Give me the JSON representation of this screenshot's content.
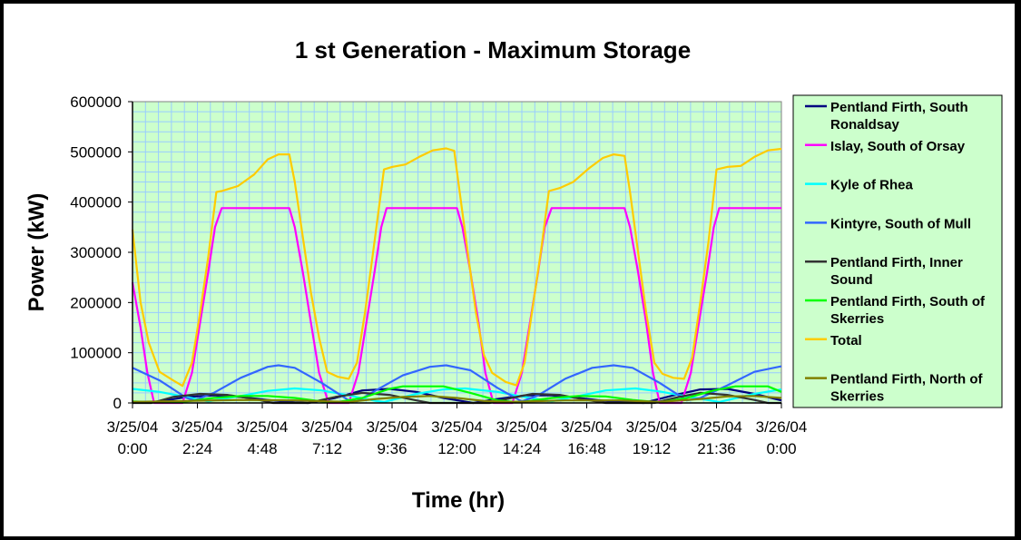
{
  "chart_data": {
    "type": "line",
    "title": "1 st Generation - Maximum Storage",
    "xlabel": "Time (hr)",
    "ylabel": "Power (kW)",
    "xlim_hours": [
      0,
      24
    ],
    "ylim": [
      0,
      600000
    ],
    "y_ticks": [
      "0",
      "100000",
      "200000",
      "300000",
      "400000",
      "500000",
      "600000"
    ],
    "y_tick_values": [
      0,
      100000,
      200000,
      300000,
      400000,
      500000,
      600000
    ],
    "x_ticks": [
      {
        "date": "3/25/04",
        "time": "0:00",
        "hours": 0
      },
      {
        "date": "3/25/04",
        "time": "2:24",
        "hours": 2.4
      },
      {
        "date": "3/25/04",
        "time": "4:48",
        "hours": 4.8
      },
      {
        "date": "3/25/04",
        "time": "7:12",
        "hours": 7.2
      },
      {
        "date": "3/25/04",
        "time": "9:36",
        "hours": 9.6
      },
      {
        "date": "3/25/04",
        "time": "12:00",
        "hours": 12
      },
      {
        "date": "3/25/04",
        "time": "14:24",
        "hours": 14.4
      },
      {
        "date": "3/25/04",
        "time": "16:48",
        "hours": 16.8
      },
      {
        "date": "3/25/04",
        "time": "19:12",
        "hours": 19.2
      },
      {
        "date": "3/25/04",
        "time": "21:36",
        "hours": 21.6
      },
      {
        "date": "3/26/04",
        "time": "0:00",
        "hours": 24
      }
    ],
    "grid": true,
    "legend_position": "right",
    "series": [
      {
        "name": "Pentland Firth, South Ronaldsay",
        "legend_lines": [
          "Pentland Firth, South",
          "Ronaldsay"
        ],
        "color": "#000080",
        "points": [
          [
            0,
            0
          ],
          [
            1,
            3000
          ],
          [
            2,
            12000
          ],
          [
            3,
            15000
          ],
          [
            4,
            12000
          ],
          [
            5,
            6000
          ],
          [
            6,
            1000
          ],
          [
            6.5,
            0
          ],
          [
            7.5,
            10000
          ],
          [
            8.5,
            25000
          ],
          [
            9.5,
            28000
          ],
          [
            10.5,
            22000
          ],
          [
            11.5,
            10000
          ],
          [
            12.6,
            0
          ],
          [
            13.5,
            8000
          ],
          [
            14.5,
            15000
          ],
          [
            15.5,
            15000
          ],
          [
            16.5,
            10000
          ],
          [
            17.5,
            4000
          ],
          [
            18.9,
            0
          ],
          [
            20,
            15000
          ],
          [
            21,
            27000
          ],
          [
            22,
            28000
          ],
          [
            23,
            18000
          ],
          [
            24,
            5000
          ]
        ]
      },
      {
        "name": "Islay, South of Orsay",
        "legend_lines": [
          "Islay, South of Orsay"
        ],
        "color": "#FF00FF",
        "points": [
          [
            0,
            240000
          ],
          [
            0.3,
            150000
          ],
          [
            0.55,
            60000
          ],
          [
            0.8,
            0
          ],
          [
            1.85,
            0
          ],
          [
            2.2,
            60000
          ],
          [
            2.5,
            160000
          ],
          [
            2.8,
            260000
          ],
          [
            3.05,
            350000
          ],
          [
            3.3,
            388000
          ],
          [
            5.8,
            388000
          ],
          [
            6.0,
            350000
          ],
          [
            6.3,
            260000
          ],
          [
            6.6,
            160000
          ],
          [
            6.9,
            60000
          ],
          [
            7.25,
            0
          ],
          [
            8.0,
            0
          ],
          [
            8.35,
            60000
          ],
          [
            8.65,
            160000
          ],
          [
            8.95,
            260000
          ],
          [
            9.2,
            350000
          ],
          [
            9.4,
            388000
          ],
          [
            12.0,
            388000
          ],
          [
            12.2,
            350000
          ],
          [
            12.5,
            260000
          ],
          [
            12.8,
            160000
          ],
          [
            13.05,
            60000
          ],
          [
            13.35,
            0
          ],
          [
            14.05,
            0
          ],
          [
            14.4,
            60000
          ],
          [
            14.7,
            160000
          ],
          [
            15.0,
            260000
          ],
          [
            15.25,
            350000
          ],
          [
            15.5,
            388000
          ],
          [
            18.2,
            388000
          ],
          [
            18.4,
            350000
          ],
          [
            18.7,
            260000
          ],
          [
            19.0,
            160000
          ],
          [
            19.25,
            60000
          ],
          [
            19.5,
            0
          ],
          [
            20.3,
            0
          ],
          [
            20.65,
            60000
          ],
          [
            20.95,
            160000
          ],
          [
            21.25,
            260000
          ],
          [
            21.5,
            350000
          ],
          [
            21.7,
            388000
          ],
          [
            24,
            388000
          ]
        ]
      },
      {
        "name": "Kyle of Rhea",
        "legend_lines": [
          "Kyle of Rhea"
        ],
        "color": "#00FFFF",
        "points": [
          [
            0,
            28000
          ],
          [
            1,
            22000
          ],
          [
            2,
            12000
          ],
          [
            2.8,
            3000
          ],
          [
            4,
            14000
          ],
          [
            5,
            24000
          ],
          [
            6,
            29000
          ],
          [
            7,
            25000
          ],
          [
            8,
            15000
          ],
          [
            9,
            4000
          ],
          [
            9.3,
            2000
          ],
          [
            10.5,
            18000
          ],
          [
            11.5,
            27000
          ],
          [
            12.3,
            29000
          ],
          [
            13.5,
            22000
          ],
          [
            14.5,
            12000
          ],
          [
            15.5,
            3000
          ],
          [
            16.5,
            14000
          ],
          [
            17.5,
            25000
          ],
          [
            18.6,
            29000
          ],
          [
            19.5,
            23000
          ],
          [
            20.5,
            13000
          ],
          [
            21.7,
            2000
          ],
          [
            23,
            18000
          ],
          [
            24,
            27000
          ]
        ]
      },
      {
        "name": "Kintyre, South of Mull",
        "legend_lines": [
          "Kintyre, South of Mull"
        ],
        "color": "#3366FF",
        "points": [
          [
            0,
            70000
          ],
          [
            1,
            45000
          ],
          [
            2,
            10000
          ],
          [
            2.3,
            5000
          ],
          [
            3,
            20000
          ],
          [
            4,
            50000
          ],
          [
            5,
            72000
          ],
          [
            5.4,
            75000
          ],
          [
            6,
            70000
          ],
          [
            7,
            40000
          ],
          [
            8,
            5000
          ],
          [
            8.3,
            3000
          ],
          [
            9,
            25000
          ],
          [
            10,
            55000
          ],
          [
            11,
            72000
          ],
          [
            11.6,
            75000
          ],
          [
            12.5,
            65000
          ],
          [
            13.5,
            30000
          ],
          [
            14.4,
            3000
          ],
          [
            15,
            15000
          ],
          [
            16,
            48000
          ],
          [
            17,
            70000
          ],
          [
            17.8,
            75000
          ],
          [
            18.5,
            70000
          ],
          [
            19.5,
            40000
          ],
          [
            20.5,
            5000
          ],
          [
            21,
            10000
          ],
          [
            22,
            35000
          ],
          [
            23,
            62000
          ],
          [
            24,
            73000
          ]
        ]
      },
      {
        "name": "Pentland Firth, Inner Sound",
        "legend_lines": [
          "Pentland Firth, Inner",
          "Sound"
        ],
        "color": "#333333",
        "points": [
          [
            0,
            0
          ],
          [
            0.7,
            0
          ],
          [
            1.5,
            12000
          ],
          [
            2.5,
            18000
          ],
          [
            3.5,
            16000
          ],
          [
            4.5,
            8000
          ],
          [
            5.2,
            0
          ],
          [
            6.5,
            0
          ],
          [
            7.5,
            12000
          ],
          [
            8.5,
            20000
          ],
          [
            9.5,
            16000
          ],
          [
            10.5,
            5000
          ],
          [
            11,
            0
          ],
          [
            13.2,
            0
          ],
          [
            14,
            10000
          ],
          [
            14.8,
            18000
          ],
          [
            15.8,
            16000
          ],
          [
            16.8,
            6000
          ],
          [
            17.5,
            0
          ],
          [
            19.3,
            0
          ],
          [
            20.2,
            12000
          ],
          [
            21,
            20000
          ],
          [
            22,
            16000
          ],
          [
            23,
            6000
          ],
          [
            23.5,
            0
          ],
          [
            24,
            0
          ]
        ]
      },
      {
        "name": "Pentland Firth, South of Skerries",
        "legend_lines": [
          "Pentland Firth, South of",
          "Skerries"
        ],
        "color": "#00FF00",
        "points": [
          [
            0,
            3000
          ],
          [
            1,
            1000
          ],
          [
            2,
            3000
          ],
          [
            3,
            10000
          ],
          [
            4,
            14000
          ],
          [
            5,
            14000
          ],
          [
            6,
            10000
          ],
          [
            7,
            3000
          ],
          [
            7.5,
            1000
          ],
          [
            8.5,
            10000
          ],
          [
            9.5,
            28000
          ],
          [
            10,
            33000
          ],
          [
            11.5,
            33000
          ],
          [
            12.5,
            20000
          ],
          [
            13.5,
            5000
          ],
          [
            14.3,
            1000
          ],
          [
            15.5,
            10000
          ],
          [
            16.5,
            14000
          ],
          [
            17.5,
            13000
          ],
          [
            18.5,
            6000
          ],
          [
            19.5,
            1000
          ],
          [
            20.5,
            10000
          ],
          [
            21.5,
            25000
          ],
          [
            22.3,
            33000
          ],
          [
            23.5,
            33000
          ],
          [
            24,
            22000
          ]
        ]
      },
      {
        "name": "Total",
        "legend_lines": [
          "Total"
        ],
        "color": "#FFCC00",
        "points": [
          [
            0,
            345000
          ],
          [
            0.3,
            200000
          ],
          [
            0.6,
            120000
          ],
          [
            1.0,
            62000
          ],
          [
            1.5,
            45000
          ],
          [
            1.85,
            34000
          ],
          [
            2.2,
            80000
          ],
          [
            2.5,
            180000
          ],
          [
            2.8,
            290000
          ],
          [
            3.1,
            420000
          ],
          [
            3.3,
            422000
          ],
          [
            3.9,
            432000
          ],
          [
            4.5,
            455000
          ],
          [
            5.0,
            485000
          ],
          [
            5.4,
            495000
          ],
          [
            5.8,
            495000
          ],
          [
            6.0,
            440000
          ],
          [
            6.3,
            330000
          ],
          [
            6.6,
            220000
          ],
          [
            6.9,
            130000
          ],
          [
            7.2,
            62000
          ],
          [
            7.6,
            52000
          ],
          [
            8.0,
            48000
          ],
          [
            8.3,
            80000
          ],
          [
            8.6,
            180000
          ],
          [
            8.9,
            300000
          ],
          [
            9.3,
            465000
          ],
          [
            9.6,
            470000
          ],
          [
            10.1,
            475000
          ],
          [
            10.6,
            490000
          ],
          [
            11.1,
            503000
          ],
          [
            11.6,
            507000
          ],
          [
            11.9,
            502000
          ],
          [
            12.1,
            420000
          ],
          [
            12.4,
            300000
          ],
          [
            12.7,
            180000
          ],
          [
            13.0,
            95000
          ],
          [
            13.3,
            60000
          ],
          [
            13.8,
            42000
          ],
          [
            14.2,
            35000
          ],
          [
            14.5,
            80000
          ],
          [
            14.8,
            190000
          ],
          [
            15.1,
            300000
          ],
          [
            15.4,
            422000
          ],
          [
            15.8,
            428000
          ],
          [
            16.3,
            440000
          ],
          [
            16.9,
            468000
          ],
          [
            17.4,
            488000
          ],
          [
            17.8,
            495000
          ],
          [
            18.2,
            492000
          ],
          [
            18.4,
            420000
          ],
          [
            18.7,
            300000
          ],
          [
            19.0,
            180000
          ],
          [
            19.3,
            80000
          ],
          [
            19.6,
            58000
          ],
          [
            20.0,
            50000
          ],
          [
            20.4,
            48000
          ],
          [
            20.7,
            90000
          ],
          [
            21.0,
            200000
          ],
          [
            21.3,
            320000
          ],
          [
            21.6,
            465000
          ],
          [
            22.0,
            470000
          ],
          [
            22.5,
            472000
          ],
          [
            23.0,
            490000
          ],
          [
            23.5,
            503000
          ],
          [
            24,
            506000
          ]
        ]
      },
      {
        "name": "Pentland Firth, North of Skerries",
        "legend_lines": [
          "Pentland Firth, North of",
          "Skerries"
        ],
        "color": "#808000",
        "points": [
          [
            0,
            2000
          ],
          [
            2,
            4000
          ],
          [
            4,
            6000
          ],
          [
            6,
            5000
          ],
          [
            8,
            2000
          ],
          [
            9,
            8000
          ],
          [
            10,
            12000
          ],
          [
            11,
            14000
          ],
          [
            12,
            10000
          ],
          [
            13,
            4000
          ],
          [
            14,
            2000
          ],
          [
            16,
            5000
          ],
          [
            18,
            5000
          ],
          [
            19.5,
            2000
          ],
          [
            21,
            8000
          ],
          [
            22,
            13000
          ],
          [
            23,
            14000
          ],
          [
            24,
            10000
          ]
        ]
      }
    ]
  }
}
